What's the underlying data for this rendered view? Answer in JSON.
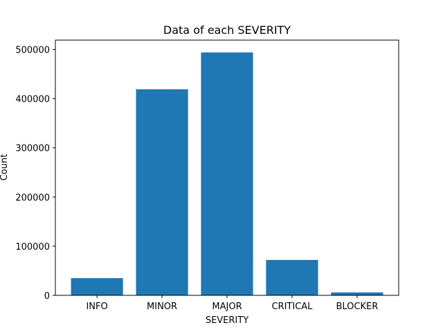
{
  "chart_data": {
    "type": "bar",
    "title": "Data of each SEVERITY",
    "xlabel": "SEVERITY",
    "ylabel": "Count",
    "categories": [
      "INFO",
      "MINOR",
      "MAJOR",
      "CRITICAL",
      "BLOCKER"
    ],
    "values": [
      35000,
      419000,
      494000,
      72000,
      6000
    ],
    "ylim": [
      0,
      519000
    ],
    "yticks": [
      0,
      100000,
      200000,
      300000,
      400000,
      500000
    ],
    "bar_color": "#1f77b4",
    "grid": false,
    "legend": "none"
  }
}
